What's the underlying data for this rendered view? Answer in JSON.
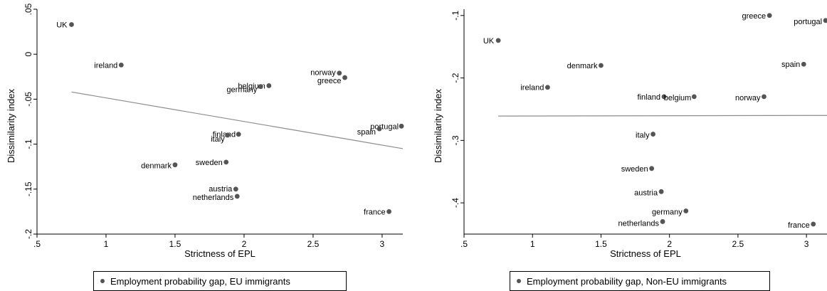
{
  "chart_data": [
    {
      "type": "scatter",
      "xlabel": "Strictness of EPL",
      "ylabel": "Dissimilarity index",
      "xlim": [
        0.5,
        3.15
      ],
      "ylim": [
        -0.2,
        0.05
      ],
      "xticks": [
        0.5,
        1,
        1.5,
        2,
        2.5,
        3
      ],
      "xtick_labels": [
        ".5",
        "1",
        "1.5",
        "2",
        "2.5",
        "3"
      ],
      "yticks": [
        0.05,
        0,
        -0.05,
        -0.1,
        -0.15,
        -0.2
      ],
      "ytick_labels": [
        ".05",
        "0",
        "-.05",
        "-.1",
        "-.15",
        "-.2"
      ],
      "grid": false,
      "legend": "Employment probability gap, EU immigrants",
      "fit_line": {
        "x": [
          0.75,
          3.15
        ],
        "y": [
          -0.042,
          -0.105
        ]
      },
      "points": [
        {
          "label": "UK",
          "x": 0.75,
          "y": 0.033
        },
        {
          "label": "ireland",
          "x": 1.11,
          "y": -0.012
        },
        {
          "label": "norway",
          "x": 2.69,
          "y": -0.021
        },
        {
          "label": "greece",
          "x": 2.73,
          "y": -0.026
        },
        {
          "label": "belgium",
          "x": 2.18,
          "y": -0.035
        },
        {
          "label": "germany",
          "x": 2.12,
          "y": -0.036
        },
        {
          "label": "portugal",
          "x": 3.14,
          "y": -0.08
        },
        {
          "label": "spain",
          "x": 2.98,
          "y": -0.083
        },
        {
          "label": "finland",
          "x": 1.96,
          "y": -0.089
        },
        {
          "label": "italy",
          "x": 1.88,
          "y": -0.09
        },
        {
          "label": "sweden",
          "x": 1.87,
          "y": -0.12
        },
        {
          "label": "denmark",
          "x": 1.5,
          "y": -0.123
        },
        {
          "label": "austria",
          "x": 1.94,
          "y": -0.15
        },
        {
          "label": "netherlands",
          "x": 1.95,
          "y": -0.158
        },
        {
          "label": "france",
          "x": 3.05,
          "y": -0.175
        }
      ]
    },
    {
      "type": "scatter",
      "xlabel": "Strictness of EPL",
      "ylabel": "Dissimilarity index",
      "xlim": [
        0.5,
        3.15
      ],
      "ylim": [
        -0.45,
        -0.09
      ],
      "xticks": [
        0.5,
        1,
        1.5,
        2,
        2.5,
        3
      ],
      "xtick_labels": [
        ".5",
        "1",
        "1.5",
        "2",
        "2.5",
        "3"
      ],
      "yticks": [
        -0.1,
        -0.2,
        -0.3,
        -0.4
      ],
      "ytick_labels": [
        "-.1",
        "-.2",
        "-.3",
        "-.4"
      ],
      "grid": false,
      "legend": "Employment probability gap, Non-EU immigrants",
      "fit_line": {
        "x": [
          0.75,
          3.15
        ],
        "y": [
          -0.261,
          -0.26
        ]
      },
      "points": [
        {
          "label": "greece",
          "x": 2.73,
          "y": -0.1
        },
        {
          "label": "portugal",
          "x": 3.14,
          "y": -0.108
        },
        {
          "label": "UK",
          "x": 0.75,
          "y": -0.14
        },
        {
          "label": "denmark",
          "x": 1.5,
          "y": -0.18
        },
        {
          "label": "spain",
          "x": 2.98,
          "y": -0.178
        },
        {
          "label": "ireland",
          "x": 1.11,
          "y": -0.215
        },
        {
          "label": "finland",
          "x": 1.96,
          "y": -0.23
        },
        {
          "label": "belgium",
          "x": 2.18,
          "y": -0.23
        },
        {
          "label": "norway",
          "x": 2.69,
          "y": -0.23
        },
        {
          "label": "italy",
          "x": 1.88,
          "y": -0.29
        },
        {
          "label": "sweden",
          "x": 1.87,
          "y": -0.345
        },
        {
          "label": "austria",
          "x": 1.94,
          "y": -0.382
        },
        {
          "label": "germany",
          "x": 2.12,
          "y": -0.413
        },
        {
          "label": "netherlands",
          "x": 1.95,
          "y": -0.43
        },
        {
          "label": "france",
          "x": 3.05,
          "y": -0.434
        }
      ]
    }
  ]
}
